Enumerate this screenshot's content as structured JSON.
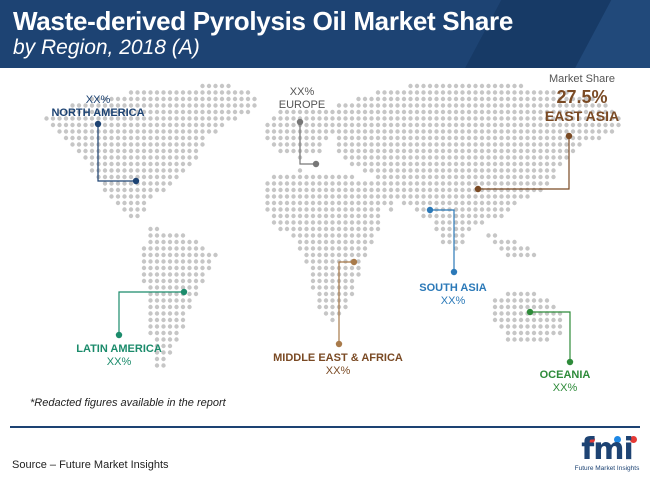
{
  "title": "Waste-derived Pyrolysis Oil Market Share",
  "subtitle": "by Region, 2018 (A)",
  "colors": {
    "header_bg": "#1d4373",
    "map_dot": "#c6c6c6",
    "north_america": "#1d4373",
    "europe": "#777777",
    "east_asia": "#7a4a24",
    "south_asia": "#2b79b8",
    "latin_america": "#1b8b6b",
    "middle_east_africa": "#a87a4a",
    "oceania": "#2e8b3a"
  },
  "regions": {
    "north_america": {
      "value": "XX%",
      "name": "NORTH AMERICA"
    },
    "europe": {
      "value": "XX%",
      "name": "EUROPE"
    },
    "east_asia": {
      "caption": "Market Share",
      "value": "27.5%",
      "name": "EAST ASIA"
    },
    "south_asia": {
      "value": "XX%",
      "name": "SOUTH ASIA"
    },
    "latin_america": {
      "value": "XX%",
      "name": "LATIN AMERICA"
    },
    "middle_east_africa": {
      "value": "XX%",
      "name": "MIDDLE EAST & AFRICA"
    },
    "oceania": {
      "value": "XX%",
      "name": "OCEANIA"
    }
  },
  "note": "*Redacted figures available in the report",
  "source": "Source – Future Market Insights",
  "logo": {
    "text": "fmi",
    "tagline": "Future Market Insights"
  }
}
